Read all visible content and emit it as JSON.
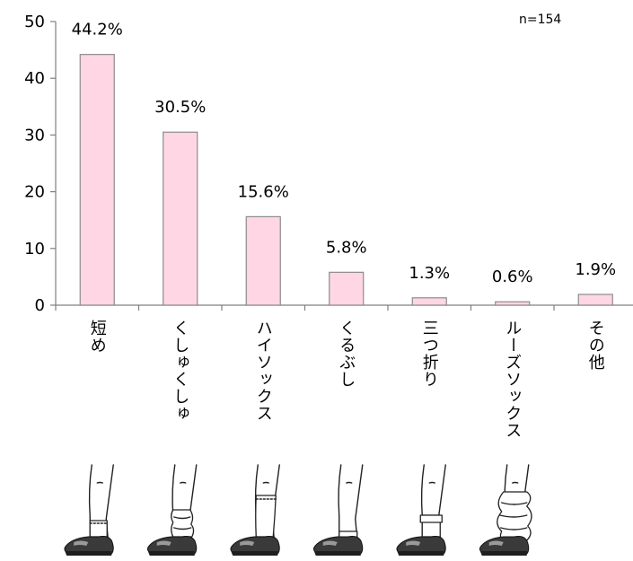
{
  "chart_data": {
    "type": "bar",
    "categories": [
      "短め",
      "くしゅくしゅ",
      "ハイソックス",
      "くるぶし",
      "三つ折り",
      "ルーズソックス",
      "その他"
    ],
    "values": [
      44.2,
      30.5,
      15.6,
      5.8,
      1.3,
      0.6,
      1.9
    ],
    "data_labels": [
      "44.2%",
      "30.5%",
      "15.6%",
      "5.8%",
      "1.3%",
      "0.6%",
      "1.9%"
    ],
    "y_ticks": [
      0,
      10,
      20,
      30,
      40,
      50
    ],
    "ylim": [
      0,
      50
    ],
    "bar_color": "#ffd6e4",
    "bar_edge_color": "#8c8c8c",
    "axis_color": "#808080",
    "note": "n=154",
    "sock_styles": [
      "short",
      "slouch",
      "high",
      "ankle",
      "folded",
      "loose"
    ]
  }
}
